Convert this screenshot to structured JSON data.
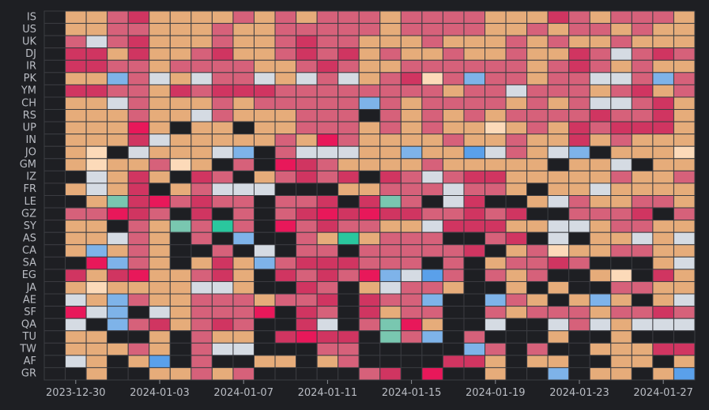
{
  "chart_data": {
    "type": "heatmap",
    "title": "",
    "xlabel": "",
    "ylabel": "",
    "rows": [
      "IS",
      "US",
      "UK",
      "DJ",
      "IR",
      "PK",
      "YM",
      "CH",
      "RS",
      "UP",
      "IN",
      "JO",
      "GM",
      "IZ",
      "FR",
      "LE",
      "GZ",
      "SY",
      "AS",
      "CA",
      "SA",
      "EG",
      "JA",
      "AE",
      "SF",
      "QA",
      "TU",
      "TW",
      "AF",
      "GR"
    ],
    "dates": [
      "2023-12-29",
      "2023-12-30",
      "2023-12-31",
      "2024-01-01",
      "2024-01-02",
      "2024-01-03",
      "2024-01-04",
      "2024-01-05",
      "2024-01-06",
      "2024-01-07",
      "2024-01-08",
      "2024-01-09",
      "2024-01-10",
      "2024-01-11",
      "2024-01-12",
      "2024-01-13",
      "2024-01-14",
      "2024-01-15",
      "2024-01-16",
      "2024-01-17",
      "2024-01-18",
      "2024-01-19",
      "2024-01-20",
      "2024-01-21",
      "2024-01-22",
      "2024-01-23",
      "2024-01-24",
      "2024-01-25",
      "2024-01-26",
      "2024-01-27",
      "2024-01-28"
    ],
    "x_tick_labels": [
      "2023-12-30",
      "2024-01-03",
      "2024-01-07",
      "2024-01-11",
      "2024-01-15",
      "2024-01-19",
      "2024-01-23",
      "2024-01-27"
    ],
    "legend": "none",
    "palette": {
      "K": "#1e1f23",
      "O": "#e6ac7a",
      "P": "#d6617a",
      "R": "#d03561",
      "H": "#e8185a",
      "W": "#d5dbe3",
      "C": "#fcdab9",
      "B": "#7eb3e9",
      "M": "#5aa0ea",
      "T": "#79c7b0",
      "G": "#2ac79e"
    },
    "grid": [
      "KOOPROOOOPOPOPPPOPPPPOOORPOPPPO",
      "KOOPPOOOPOOPPPPPOPPPPOOPOPPOPOO",
      "KPWPROOOPOOPRPPOOOPOOOPOPOOPOOO",
      "KRROROOPROOPRPROPOOPOOPOORPWPRP",
      "KRRPPOPPPPOOPRPOOPPPPPPOPRPOPOO",
      "KOOBPWOWPPWOWPWOPRCPBPPOPPWWPBP",
      "KRRPPORPRRRPPPPPPPPOPPWPPPOPROP",
      "KOOWPOOOPOPPPPPBPOPPPPOPOPWWPRO",
      "KOOOPOOWPOOOPPPKPOPOPOPPPPRPPRO",
      "KOOOHOKOOKOOPPPOPOPOOCOPORPRRRO",
      "KOOORWOOOOOPOHPOOOOPOOPOOROPOOO",
      "KOCKWOOOWBKPWWWOOBOOMWPOWBKOOOC",
      "KOCOOPCOKPKHRPOOOOPOOOOOKOOWKOO",
      "KKWOROKRPKOPRPRKRPWPRROOOOOPOOP",
      "KOWORKOPWWWKKKOOPPPWPPOKOOWOOOO",
      "KKOTRHPRPPKPPRKRTPKWRKKOWPOOPPO",
      "KPPHRPKRKPKPRHRHRRPPRPRKKPPPRKP",
      "KOOKPOTPGPKHPRPPOOWRRROOWWOPPOO",
      "KOOWPOKPKBKKPOGOPPPKKPRKWKOOWOW",
      "KOBOPOKKPKWKPPKPPPPPRKOPCOOPPOO",
      "KKHBPOKOROBPRRRPPPKPKOPPRPKKKOW",
      "KRORHOOPROKRPRPHBWMPKPOPKKOCKRO",
      "KOCOOOOWWOKKRPKOWPPOKKOKOKKPPOO",
      "KWOBPOOPPPOPPRKRPPBKKBPOKOBOKOW",
      "KHWBKWOPPPHKRPKROPPKKPOPPPOPPRP",
      "KWKBPROPRPKKRWKPTHOKKWKKWPWOWWW",
      "KOOKKOKPOOKRHRRKTPBKPKKKOKKOKKK",
      "KOOOPOKPWWKKKPPKKKKKBPKPKKOOORR",
      "KWOKOMKPKKOOKOPKKKKRROKOOKKOOKO",
      "KKOKKOOPOPKKKKKPRKHKKOKKBKOOKOM"
    ]
  }
}
